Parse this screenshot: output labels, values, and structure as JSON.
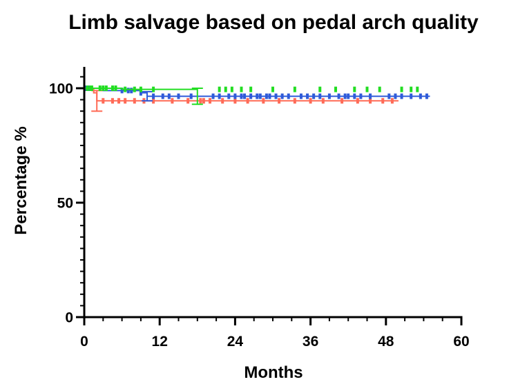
{
  "chart_data": {
    "type": "line",
    "title": "Limb salvage based on pedal arch quality",
    "xlabel": "Months",
    "ylabel": "Percentage %",
    "xlim": [
      0,
      60
    ],
    "ylim": [
      0,
      100
    ],
    "xticks": [
      0,
      12,
      24,
      36,
      48,
      60
    ],
    "yticks": [
      0,
      50,
      100
    ],
    "x_minor_step": 3,
    "y_minor_step": 5,
    "grid": false,
    "legend": "none",
    "series": [
      {
        "color": "#ff6b57",
        "steps": [
          [
            0,
            100
          ],
          [
            1.5,
            98
          ],
          [
            2,
            94.5
          ],
          [
            50,
            94.5
          ]
        ],
        "error_bars": [
          [
            2,
            90,
            99
          ]
        ],
        "censor_x": [
          0.5,
          3,
          4.5,
          5.5,
          6.5,
          8,
          9.5,
          11,
          14,
          16.5,
          18.5,
          19,
          20,
          22,
          24,
          26,
          28.5,
          31,
          33.5,
          36,
          38,
          41,
          43.5,
          45.5,
          47.5,
          49
        ]
      },
      {
        "color": "#2f5bd9",
        "steps": [
          [
            0,
            100
          ],
          [
            2,
            100
          ],
          [
            3,
            99
          ],
          [
            9,
            98
          ],
          [
            10,
            96.5
          ],
          [
            55,
            96.5
          ]
        ],
        "error_bars": [
          [
            10,
            94.5,
            98.5
          ]
        ],
        "censor_x": [
          0.3,
          0.8,
          6,
          7,
          7.5,
          9,
          11,
          12.5,
          13.5,
          15,
          17,
          20.5,
          21.5,
          23,
          24,
          25,
          25.5,
          26.5,
          27.5,
          28,
          29,
          29.5,
          30.5,
          31.5,
          32.5,
          34.5,
          35.5,
          36.5,
          37.5,
          39,
          40.5,
          41.5,
          42,
          43,
          44,
          45.5,
          48.5,
          49.5,
          50.5,
          52,
          53.5,
          54.5
        ]
      },
      {
        "color": "#22dd22",
        "steps": [
          [
            0,
            100
          ],
          [
            5,
            100
          ],
          [
            6,
            99.5
          ],
          [
            18,
            99.5
          ]
        ],
        "error_bars": [
          [
            18,
            93,
            100
          ]
        ],
        "censor_x": [
          0.5,
          1,
          1.2,
          2.5,
          3,
          3.5,
          4.5,
          5,
          6.5,
          8,
          9,
          11,
          21.5,
          22.5,
          23.5,
          25,
          26.5,
          30,
          33.5,
          37.5,
          40,
          43,
          45,
          47,
          50.5,
          52,
          53
        ]
      }
    ]
  }
}
